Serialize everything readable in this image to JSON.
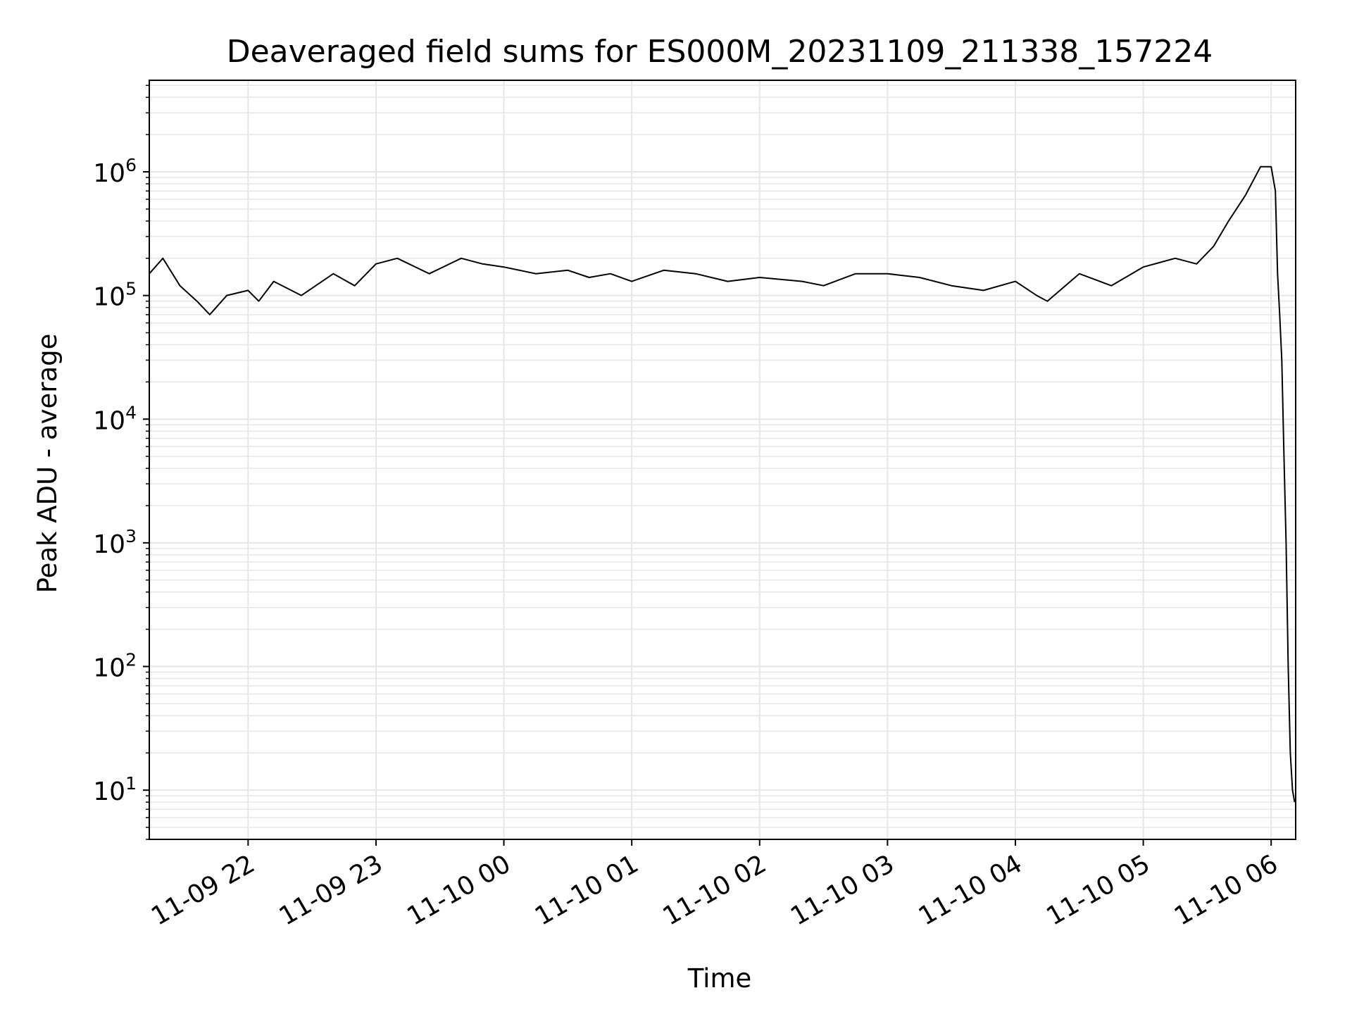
{
  "chart_data": {
    "type": "line",
    "title": "Deaveraged field sums for ES000M_20231109_211338_157224",
    "xlabel": "Time",
    "ylabel": "Peak ADU - average",
    "yscale": "log",
    "ylim": [
      4,
      5500000
    ],
    "xlim": [
      "2023-11-09 21:13:38",
      "2023-11-10 06:11:30"
    ],
    "grid": true,
    "legend": "none",
    "line_color": "#000000",
    "grid_color": "#e6e6e6",
    "x_ticks": [
      {
        "value": "2023-11-09 22:00",
        "label": "11-09 22"
      },
      {
        "value": "2023-11-09 23:00",
        "label": "11-09 23"
      },
      {
        "value": "2023-11-10 00:00",
        "label": "11-10 00"
      },
      {
        "value": "2023-11-10 01:00",
        "label": "11-10 01"
      },
      {
        "value": "2023-11-10 02:00",
        "label": "11-10 02"
      },
      {
        "value": "2023-11-10 03:00",
        "label": "11-10 03"
      },
      {
        "value": "2023-11-10 04:00",
        "label": "11-10 04"
      },
      {
        "value": "2023-11-10 05:00",
        "label": "11-10 05"
      },
      {
        "value": "2023-11-10 06:00",
        "label": "11-10 06"
      }
    ],
    "y_ticks": [
      {
        "value": 10,
        "base": "10",
        "exp": "1"
      },
      {
        "value": 100,
        "base": "10",
        "exp": "2"
      },
      {
        "value": 1000,
        "base": "10",
        "exp": "3"
      },
      {
        "value": 10000,
        "base": "10",
        "exp": "4"
      },
      {
        "value": 100000,
        "base": "10",
        "exp": "5"
      },
      {
        "value": 1000000,
        "base": "10",
        "exp": "6"
      }
    ],
    "series": [
      {
        "x": [
          "2023-11-09 21:13:38",
          "2023-11-09 21:20",
          "2023-11-09 21:28",
          "2023-11-09 21:36",
          "2023-11-09 21:42",
          "2023-11-09 21:50",
          "2023-11-09 22:00",
          "2023-11-09 22:05",
          "2023-11-09 22:12",
          "2023-11-09 22:25",
          "2023-11-09 22:40",
          "2023-11-09 22:50",
          "2023-11-09 23:00",
          "2023-11-09 23:10",
          "2023-11-09 23:25",
          "2023-11-09 23:40",
          "2023-11-09 23:50",
          "2023-11-10 00:00",
          "2023-11-10 00:15",
          "2023-11-10 00:30",
          "2023-11-10 00:40",
          "2023-11-10 00:50",
          "2023-11-10 01:00",
          "2023-11-10 01:15",
          "2023-11-10 01:30",
          "2023-11-10 01:45",
          "2023-11-10 02:00",
          "2023-11-10 02:20",
          "2023-11-10 02:30",
          "2023-11-10 02:45",
          "2023-11-10 03:00",
          "2023-11-10 03:15",
          "2023-11-10 03:30",
          "2023-11-10 03:45",
          "2023-11-10 04:00",
          "2023-11-10 04:10",
          "2023-11-10 04:15",
          "2023-11-10 04:30",
          "2023-11-10 04:45",
          "2023-11-10 05:00",
          "2023-11-10 05:15",
          "2023-11-10 05:25",
          "2023-11-10 05:33",
          "2023-11-10 05:40",
          "2023-11-10 05:48",
          "2023-11-10 05:55",
          "2023-11-10 06:00",
          "2023-11-10 06:02",
          "2023-11-10 06:03",
          "2023-11-10 06:04",
          "2023-11-10 06:05",
          "2023-11-10 06:06",
          "2023-11-10 06:07",
          "2023-11-10 06:08",
          "2023-11-10 06:09",
          "2023-11-10 06:10",
          "2023-11-10 06:11"
        ],
        "y": [
          150000,
          200000,
          120000,
          90000,
          70000,
          100000,
          110000,
          90000,
          130000,
          100000,
          150000,
          120000,
          180000,
          200000,
          150000,
          200000,
          180000,
          170000,
          150000,
          160000,
          140000,
          150000,
          130000,
          160000,
          150000,
          130000,
          140000,
          130000,
          120000,
          150000,
          150000,
          140000,
          120000,
          110000,
          130000,
          100000,
          90000,
          150000,
          120000,
          170000,
          200000,
          180000,
          250000,
          400000,
          650000,
          1100000,
          1100000,
          700000,
          150000,
          70000,
          30000,
          5000,
          1000,
          100,
          20,
          10,
          8
        ]
      }
    ]
  }
}
